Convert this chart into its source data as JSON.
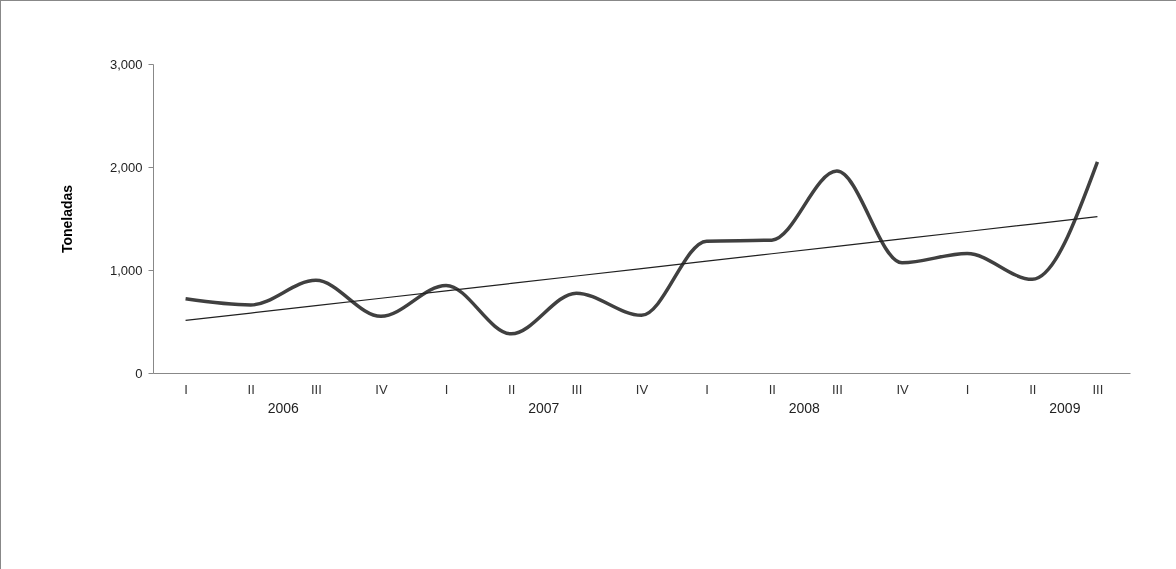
{
  "chart_data": {
    "type": "line",
    "ylabel": "Toneladas",
    "categories": [
      "I",
      "II",
      "III",
      "IV",
      "I",
      "II",
      "III",
      "IV",
      "I",
      "II",
      "III",
      "IV",
      "I",
      "II",
      "III"
    ],
    "series": [
      {
        "color": "#404040",
        "values": [
          720,
          660,
          900,
          550,
          850,
          380,
          775,
          560,
          1280,
          1290,
          1960,
          1070,
          1160,
          910,
          2050
        ]
      },
      {
        "color": "#202020",
        "line_style": "solid",
        "values": [
          510,
          582,
          654,
          726,
          798,
          870,
          942,
          1014,
          1086,
          1158,
          1230,
          1302,
          1374,
          1446,
          1518
        ]
      }
    ],
    "ylim": [
      0,
      3000
    ],
    "yticks": [
      {
        "value": 0,
        "label": "0"
      },
      {
        "value": 1000,
        "label": "1,000"
      },
      {
        "value": 2000,
        "label": "2,000"
      },
      {
        "value": 3000,
        "label": "3,000"
      }
    ],
    "annotations": [
      "2006",
      "2007",
      "2008",
      "2009"
    ]
  }
}
